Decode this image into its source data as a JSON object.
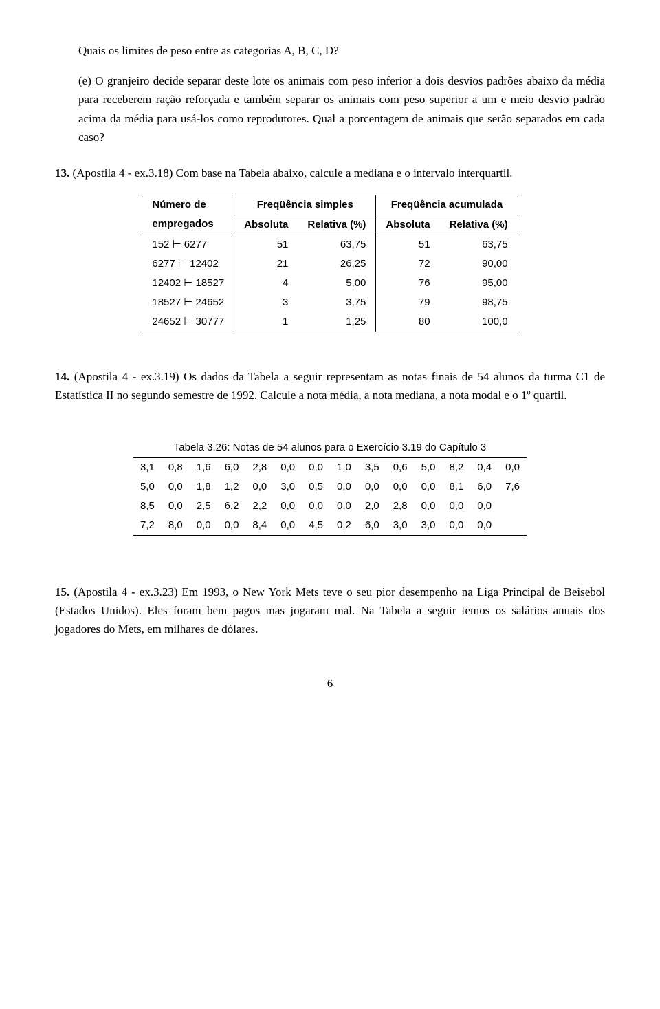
{
  "q_limites": "Quais os limites de peso entre as categorias A, B, C, D?",
  "item_e_label": "(e)",
  "item_e_text": "O granjeiro decide separar deste lote os animais com peso inferior a dois desvios padrões abaixo da média para receberem ração reforçada e também separar os animais com peso superior a um e meio desvio padrão acima da média para usá-los como reprodutores. Qual a porcentagem de animais que serão separados em cada caso?",
  "p13_label": "13.",
  "p13_text": "(Apostila 4 - ex.3.18) Com base na Tabela abaixo, calcule a mediana e o intervalo interquartil.",
  "table1": {
    "head_col1_a": "Número de",
    "head_col1_b": "empregados",
    "head_group1": "Freqüência simples",
    "head_group2": "Freqüência acumulada",
    "sub_abs": "Absoluta",
    "sub_rel": "Relativa (%)",
    "rows": [
      {
        "range": "152 ⊢ 6277",
        "fa": "51",
        "fr": "63,75",
        "Fa": "51",
        "Fr": "63,75"
      },
      {
        "range": "6277 ⊢ 12402",
        "fa": "21",
        "fr": "26,25",
        "Fa": "72",
        "Fr": "90,00"
      },
      {
        "range": "12402 ⊢ 18527",
        "fa": "4",
        "fr": "5,00",
        "Fa": "76",
        "Fr": "95,00"
      },
      {
        "range": "18527 ⊢ 24652",
        "fa": "3",
        "fr": "3,75",
        "Fa": "79",
        "Fr": "98,75"
      },
      {
        "range": "24652 ⊢ 30777",
        "fa": "1",
        "fr": "1,25",
        "Fa": "80",
        "Fr": "100,0"
      }
    ]
  },
  "p14_label": "14.",
  "p14_text": "(Apostila 4 - ex.3.19) Os dados da Tabela a seguir representam as notas finais de 54 alunos da turma C1 de Estatística II no segundo semestre de 1992. Calcule a nota média, a nota mediana, a nota modal e o 1º quartil.",
  "table2_caption": "Tabela 3.26: Notas de 54 alunos para o Exercício 3.19 do Capítulo 3",
  "table2_rows": [
    [
      "3,1",
      "0,8",
      "1,6",
      "6,0",
      "2,8",
      "0,0",
      "0,0",
      "1,0",
      "3,5",
      "0,6",
      "5,0",
      "8,2",
      "0,4",
      "0,0"
    ],
    [
      "5,0",
      "0,0",
      "1,8",
      "1,2",
      "0,0",
      "3,0",
      "0,5",
      "0,0",
      "0,0",
      "0,0",
      "0,0",
      "8,1",
      "6,0",
      "7,6"
    ],
    [
      "8,5",
      "0,0",
      "2,5",
      "6,2",
      "2,2",
      "0,0",
      "0,0",
      "0,0",
      "2,0",
      "2,8",
      "0,0",
      "0,0",
      "0,0",
      ""
    ],
    [
      "7,2",
      "8,0",
      "0,0",
      "0,0",
      "8,4",
      "0,0",
      "4,5",
      "0,2",
      "6,0",
      "3,0",
      "3,0",
      "0,0",
      "0,0",
      ""
    ]
  ],
  "p15_label": "15.",
  "p15_text": "(Apostila 4 - ex.3.23) Em 1993, o New York Mets teve o seu pior desempenho na Liga Principal de Beisebol (Estados Unidos). Eles foram bem pagos mas jogaram mal. Na Tabela a seguir temos os salários anuais dos jogadores do Mets, em milhares de dólares.",
  "page_number": "6"
}
